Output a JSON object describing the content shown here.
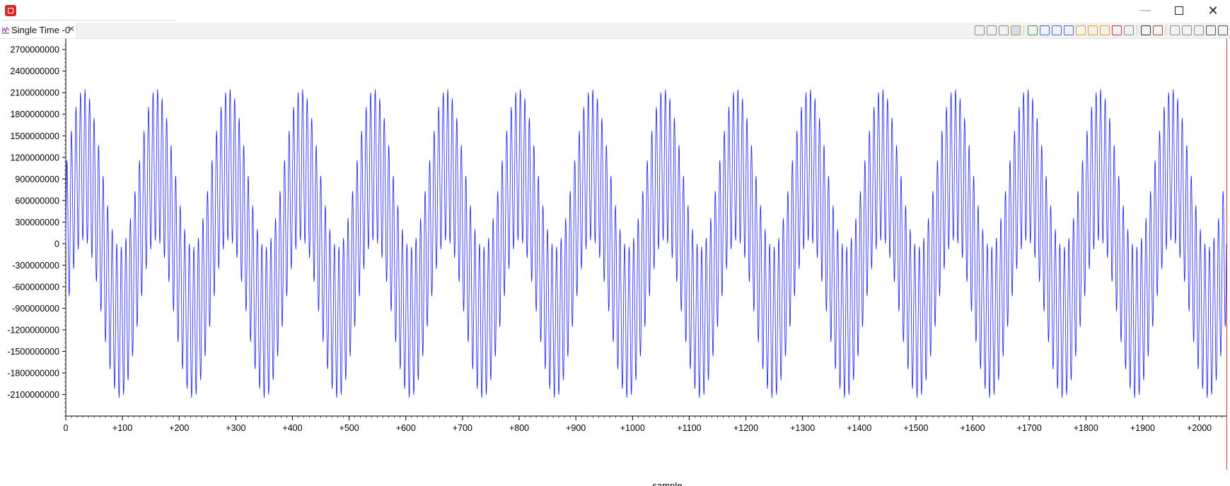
{
  "window": {
    "app_icon": "ccs-cube-icon",
    "controls": [
      "minimize-icon",
      "maximize-icon",
      "close-icon"
    ]
  },
  "tab": {
    "label": "Single Time -0",
    "icon": "graph-icon",
    "close_glyph": "✕"
  },
  "toolbar_icons": [
    "reset-graph-icon",
    "remove-all-icon",
    "properties-icon",
    "display-options-icon",
    "refresh-icon",
    "zoom-in-icon",
    "zoom-out-icon",
    "zoom-reset-icon",
    "measure-icon",
    "cursor-icon",
    "marker-icon",
    "delete-marker-icon",
    "export-icon",
    "home-icon",
    "step-icon",
    "snapshot-icon",
    "view-icon",
    "menu-icon",
    "minimize-view-icon",
    "maximize-view-icon"
  ],
  "colors": {
    "series": "#1a1aee",
    "axis": "#000000"
  },
  "chart_data": {
    "type": "line",
    "title": "",
    "xlabel": "sample",
    "ylabel": "",
    "xlim": [
      0,
      2048
    ],
    "ylim": [
      -2400000000,
      2800000000
    ],
    "yticks": [
      2700000000,
      2400000000,
      2100000000,
      1800000000,
      1500000000,
      1200000000,
      900000000,
      600000000,
      300000000,
      0,
      -300000000,
      -600000000,
      -900000000,
      -1200000000,
      -1500000000,
      -1800000000,
      -2100000000
    ],
    "ytick_labels": [
      "2700000000",
      "2400000000",
      "2100000000",
      "1800000000",
      "1500000000",
      "1200000000",
      "900000000",
      "600000000",
      "300000000",
      "0",
      "-300000000",
      "-600000000",
      "-900000000",
      "-1200000000",
      "-1500000000",
      "-1800000000",
      "-2100000000"
    ],
    "xticks": [
      0,
      100,
      200,
      300,
      400,
      500,
      600,
      700,
      800,
      900,
      1000,
      1100,
      1200,
      1300,
      1400,
      1500,
      1600,
      1700,
      1800,
      1900,
      2000
    ],
    "xtick_labels": [
      "0",
      "+100",
      "+200",
      "+300",
      "+400",
      "+500",
      "+600",
      "+700",
      "+800",
      "+900",
      "+1000",
      "+1100",
      "+1200",
      "+1300",
      "+1400",
      "+1500",
      "+1600",
      "+1700",
      "+1800",
      "+1900",
      "+2000"
    ],
    "grid": false,
    "legend": "none",
    "series": [
      {
        "samples": 2048,
        "offset": 0,
        "components": [
          {
            "amplitude": 1100000000,
            "period_samples": 128
          },
          {
            "amplitude": 1050000000,
            "period_samples": 8
          }
        ],
        "peak_max": 2150000000,
        "peak_min": -2150000000
      }
    ]
  }
}
